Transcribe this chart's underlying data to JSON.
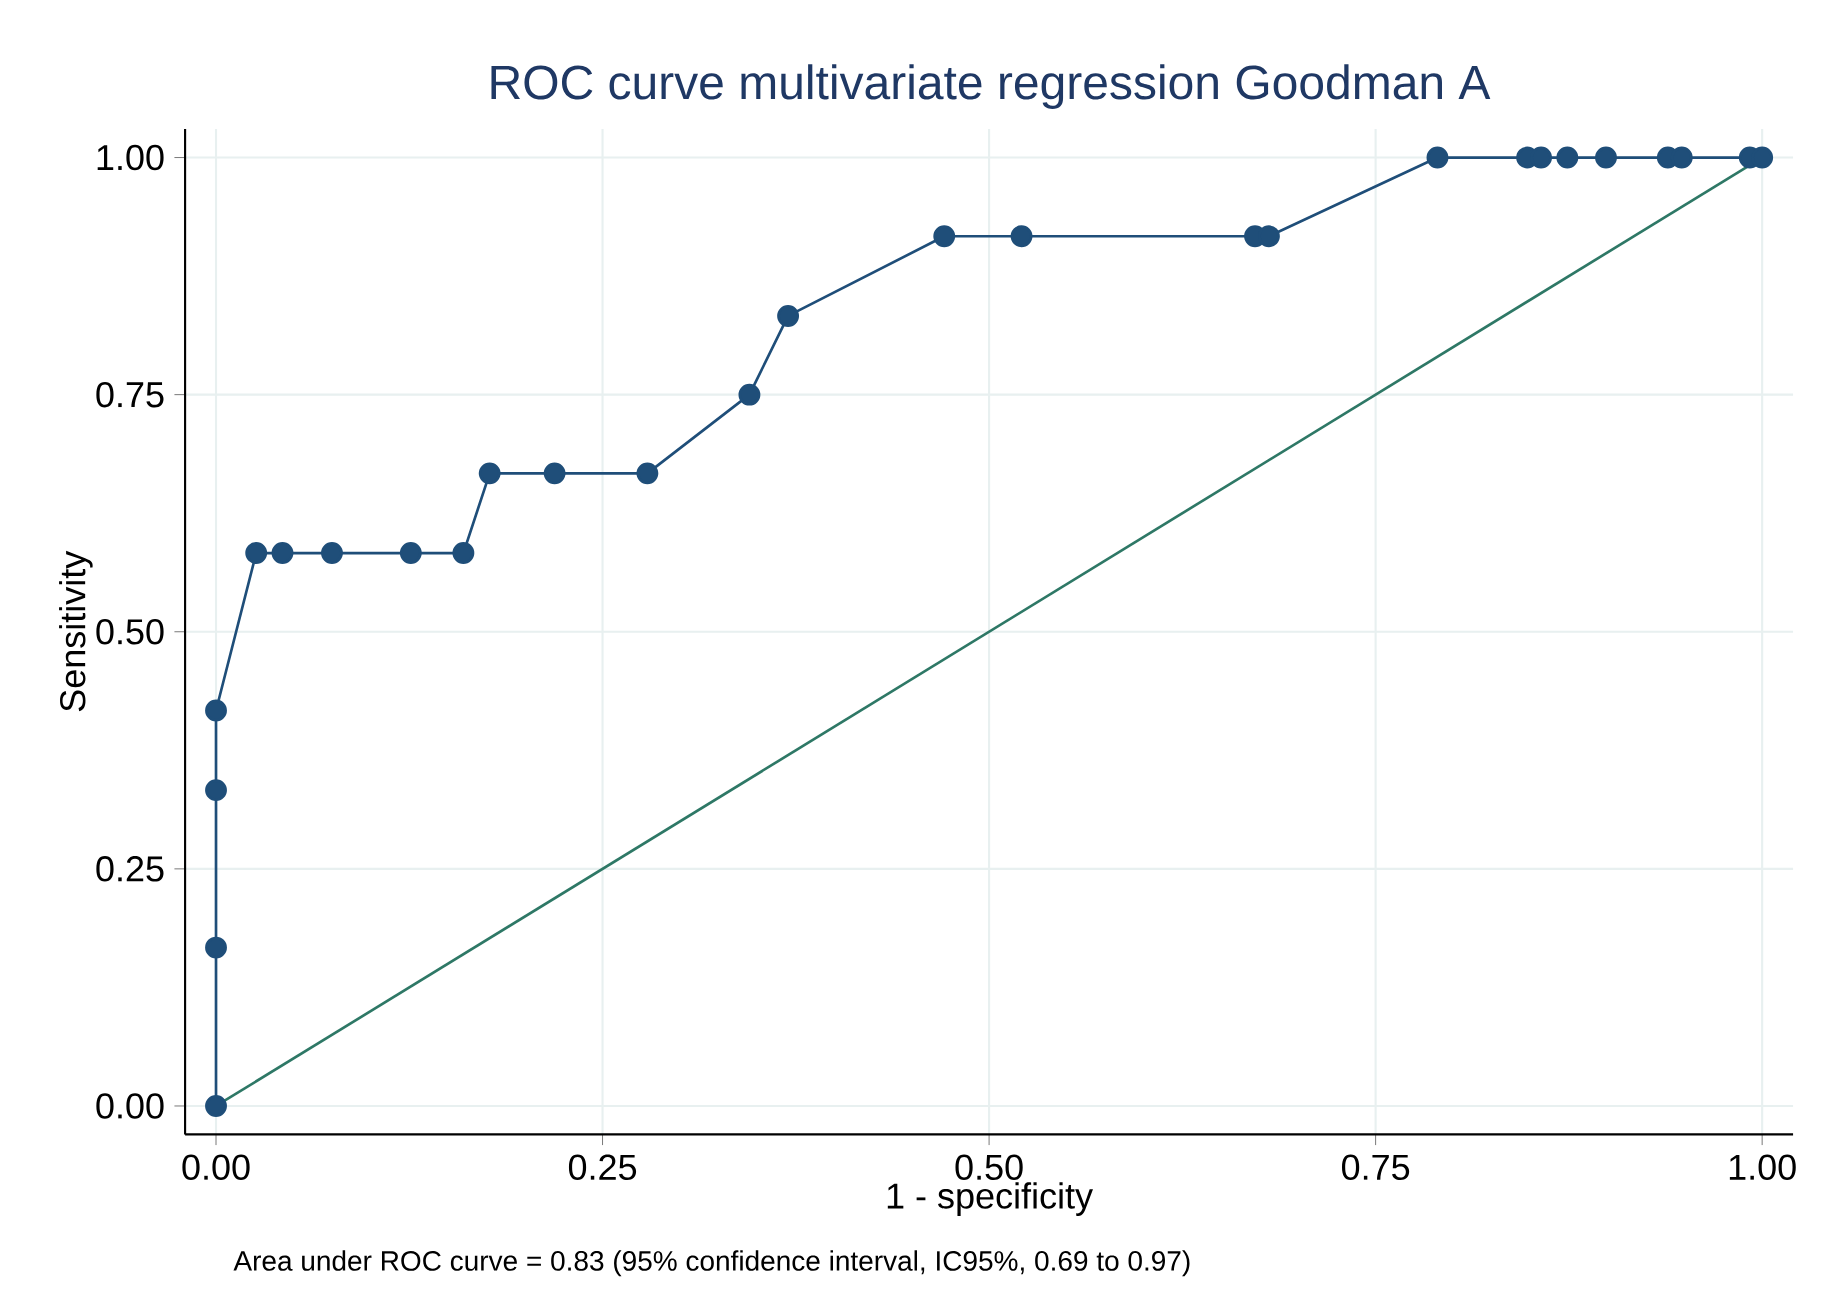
{
  "chart_data": {
    "type": "line",
    "title": "ROC curve multivariate regression Goodman A",
    "xlabel": "1 - specificity",
    "ylabel": "Sensitivity",
    "annotations": [
      "Area under ROC curve = 0.83 (95% confidence interval, IC95%, 0.69 to 0.97)"
    ],
    "series": [
      {
        "color": "#1f4e79",
        "marker": "circle",
        "x": [
          0,
          0,
          0,
          0,
          0.026,
          0.043,
          0.075,
          0.126,
          0.16,
          0.177,
          0.219,
          0.279,
          0.345,
          0.37,
          0.471,
          0.521,
          0.672,
          0.681,
          0.79,
          0.848,
          0.857,
          0.874,
          0.899,
          0.939,
          0.948,
          0.992,
          1
        ],
        "values": [
          0,
          0.167,
          0.333,
          0.417,
          0.583,
          0.583,
          0.583,
          0.583,
          0.583,
          0.667,
          0.667,
          0.667,
          0.75,
          0.833,
          0.917,
          0.917,
          0.917,
          0.917,
          1,
          1,
          1,
          1,
          1,
          1,
          1,
          1,
          1
        ]
      },
      {
        "color": "#2e7866",
        "marker": "none",
        "x": [
          0,
          1
        ],
        "values": [
          0,
          1
        ]
      }
    ],
    "xlim": [
      -0.02,
      1.02
    ],
    "ylim": [
      -0.03,
      1.03
    ],
    "xticks": [
      {
        "value": 0,
        "label": "0.00"
      },
      {
        "value": 0.25,
        "label": "0.25"
      },
      {
        "value": 0.5,
        "label": "0.50"
      },
      {
        "value": 0.75,
        "label": "0.75"
      },
      {
        "value": 1,
        "label": "1.00"
      }
    ],
    "yticks": [
      {
        "value": 0,
        "label": "0.00"
      },
      {
        "value": 0.25,
        "label": "0.25"
      },
      {
        "value": 0.5,
        "label": "0.50"
      },
      {
        "value": 0.75,
        "label": "0.75"
      },
      {
        "value": 1,
        "label": "1.00"
      }
    ],
    "grid": true,
    "line_style": "solid"
  }
}
